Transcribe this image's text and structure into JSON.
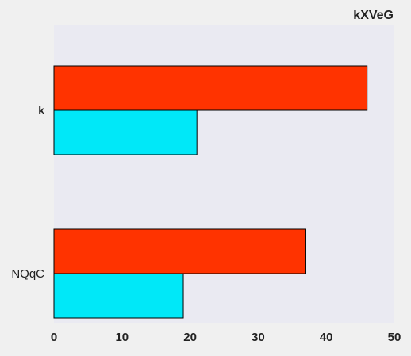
{
  "chart_data": {
    "type": "bar",
    "orientation": "horizontal",
    "title": "kXVeG",
    "xlabel": "",
    "ylabel": "",
    "categories": [
      "k",
      "NQqC"
    ],
    "series": [
      {
        "color": "#ff3300",
        "values": [
          46,
          37
        ]
      },
      {
        "color": "#00e8f8",
        "values": [
          21,
          19
        ]
      }
    ],
    "xlim": [
      0,
      50
    ],
    "x_ticks": [
      0,
      10,
      20,
      30,
      40,
      50
    ],
    "grid": false,
    "legend": "none",
    "colors": {
      "plot_background": "#eaeaf2",
      "page_background": "#f0f0f0",
      "bar_edge": "#000000",
      "text": "#222222"
    }
  }
}
